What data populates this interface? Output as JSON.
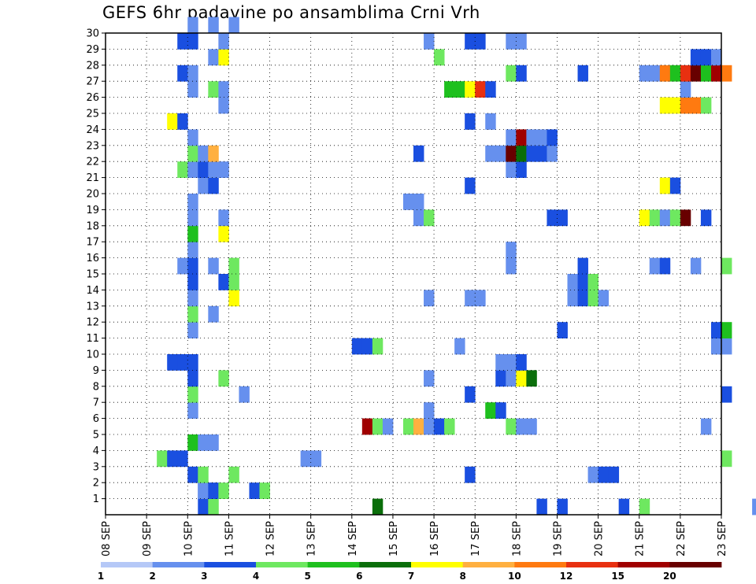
{
  "title": "GEFS 6hr padavine po ansamblima Crni Vrh",
  "chart_data": {
    "type": "heatmap",
    "title": "GEFS 6hr padavine po ansamblima Crni Vrh",
    "x_tick_labels": [
      "08 SEP",
      "09 SEP",
      "10 SEP",
      "11 SEP",
      "12 SEP",
      "13 SEP",
      "14 SEP",
      "15 SEP",
      "16 SEP",
      "17 SEP",
      "18 SEP",
      "19 SEP",
      "20 SEP",
      "21 SEP",
      "22 SEP",
      "23 SEP"
    ],
    "x_range_days": [
      0,
      15
    ],
    "y_tick_labels": [
      "1",
      "2",
      "3",
      "4",
      "5",
      "6",
      "7",
      "8",
      "9",
      "10",
      "11",
      "12",
      "13",
      "14",
      "15",
      "16",
      "17",
      "18",
      "19",
      "20",
      "21",
      "22",
      "23",
      "24",
      "25",
      "26",
      "27",
      "28",
      "29",
      "30"
    ],
    "y_range": [
      0,
      30
    ],
    "grid": true,
    "colorbar_levels": [
      "1",
      "2",
      "3",
      "4",
      "5",
      "6",
      "7",
      "8",
      "10",
      "12",
      "15",
      "20"
    ],
    "colors": [
      "#b5c8f7",
      "#6690ee",
      "#1a4fe0",
      "#6ee860",
      "#1ec01e",
      "#0a6e0a",
      "#ffff00",
      "#ffb040",
      "#ff7a10",
      "#e83010",
      "#a00000",
      "#680000"
    ],
    "cells": [
      [
        9,
        0,
        2
      ],
      [
        9,
        1,
        2
      ],
      [
        10,
        1,
        1
      ],
      [
        10,
        0,
        3
      ],
      [
        26,
        0,
        5
      ],
      [
        42,
        0,
        2
      ],
      [
        44,
        0,
        2
      ],
      [
        50,
        0,
        2
      ],
      [
        52,
        0,
        3
      ],
      [
        63,
        0,
        1
      ],
      [
        70,
        0,
        3
      ],
      [
        72,
        0,
        6
      ],
      [
        74,
        0,
        3
      ],
      [
        75,
        0,
        10
      ],
      [
        76,
        0,
        11
      ],
      [
        77,
        0,
        3
      ],
      [
        9,
        1,
        1
      ],
      [
        10,
        1,
        2
      ],
      [
        11,
        1,
        3
      ],
      [
        14,
        1,
        2
      ],
      [
        15,
        1,
        3
      ],
      [
        8,
        2,
        2
      ],
      [
        9,
        2,
        3
      ],
      [
        12,
        2,
        3
      ],
      [
        35,
        2,
        2
      ],
      [
        47,
        2,
        1
      ],
      [
        48,
        2,
        2
      ],
      [
        49,
        2,
        2
      ],
      [
        5,
        3,
        3
      ],
      [
        6,
        3,
        2
      ],
      [
        7,
        3,
        2
      ],
      [
        19,
        3,
        1
      ],
      [
        20,
        3,
        1
      ],
      [
        60,
        3,
        3
      ],
      [
        8,
        4,
        4
      ],
      [
        9,
        4,
        1
      ],
      [
        10,
        4,
        1
      ],
      [
        25,
        5,
        10
      ],
      [
        26,
        5,
        3
      ],
      [
        27,
        5,
        1
      ],
      [
        29,
        5,
        3
      ],
      [
        30,
        5,
        7
      ],
      [
        31,
        5,
        1
      ],
      [
        32,
        5,
        2
      ],
      [
        33,
        5,
        3
      ],
      [
        39,
        5,
        3
      ],
      [
        40,
        5,
        1
      ],
      [
        41,
        5,
        1
      ],
      [
        58,
        5,
        1
      ],
      [
        8,
        6,
        1
      ],
      [
        31,
        6,
        1
      ],
      [
        37,
        6,
        4
      ],
      [
        38,
        6,
        2
      ],
      [
        8,
        7,
        3
      ],
      [
        13,
        7,
        1
      ],
      [
        35,
        7,
        2
      ],
      [
        60,
        7,
        2
      ],
      [
        8,
        8,
        2
      ],
      [
        11,
        8,
        3
      ],
      [
        31,
        8,
        1
      ],
      [
        38,
        8,
        2
      ],
      [
        39,
        8,
        1
      ],
      [
        40,
        8,
        6
      ],
      [
        41,
        8,
        5
      ],
      [
        6,
        9,
        2
      ],
      [
        7,
        9,
        2
      ],
      [
        8,
        9,
        2
      ],
      [
        38,
        9,
        1
      ],
      [
        39,
        9,
        1
      ],
      [
        40,
        9,
        2
      ],
      [
        24,
        10,
        2
      ],
      [
        25,
        10,
        2
      ],
      [
        26,
        10,
        3
      ],
      [
        34,
        10,
        1
      ],
      [
        59,
        10,
        1
      ],
      [
        60,
        10,
        1
      ],
      [
        8,
        11,
        1
      ],
      [
        44,
        11,
        2
      ],
      [
        59,
        11,
        2
      ],
      [
        60,
        11,
        4
      ],
      [
        8,
        12,
        3
      ],
      [
        10,
        12,
        1
      ],
      [
        8,
        13,
        1
      ],
      [
        12,
        13,
        6
      ],
      [
        31,
        13,
        1
      ],
      [
        35,
        13,
        1
      ],
      [
        36,
        13,
        1
      ],
      [
        45,
        13,
        1
      ],
      [
        46,
        13,
        2
      ],
      [
        47,
        13,
        3
      ],
      [
        48,
        13,
        1
      ],
      [
        8,
        14,
        2
      ],
      [
        11,
        14,
        2
      ],
      [
        12,
        14,
        3
      ],
      [
        45,
        14,
        1
      ],
      [
        46,
        14,
        2
      ],
      [
        47,
        14,
        3
      ],
      [
        7,
        15,
        1
      ],
      [
        8,
        15,
        2
      ],
      [
        10,
        15,
        1
      ],
      [
        12,
        15,
        3
      ],
      [
        39,
        15,
        1
      ],
      [
        46,
        15,
        2
      ],
      [
        53,
        15,
        1
      ],
      [
        54,
        15,
        2
      ],
      [
        57,
        15,
        1
      ],
      [
        60,
        15,
        3
      ],
      [
        8,
        16,
        1
      ],
      [
        39,
        16,
        1
      ],
      [
        8,
        17,
        4
      ],
      [
        11,
        17,
        6
      ],
      [
        8,
        18,
        1
      ],
      [
        11,
        18,
        1
      ],
      [
        30,
        18,
        1
      ],
      [
        31,
        18,
        3
      ],
      [
        43,
        18,
        2
      ],
      [
        44,
        18,
        2
      ],
      [
        52,
        18,
        6
      ],
      [
        53,
        18,
        3
      ],
      [
        54,
        18,
        1
      ],
      [
        55,
        18,
        3
      ],
      [
        56,
        18,
        11
      ],
      [
        58,
        18,
        2
      ],
      [
        8,
        19,
        1
      ],
      [
        29,
        19,
        1
      ],
      [
        30,
        19,
        1
      ],
      [
        9,
        20,
        1
      ],
      [
        10,
        20,
        2
      ],
      [
        35,
        20,
        2
      ],
      [
        54,
        20,
        6
      ],
      [
        55,
        20,
        2
      ],
      [
        7,
        21,
        3
      ],
      [
        8,
        21,
        1
      ],
      [
        9,
        21,
        2
      ],
      [
        10,
        21,
        1
      ],
      [
        11,
        21,
        1
      ],
      [
        39,
        21,
        1
      ],
      [
        40,
        21,
        2
      ],
      [
        8,
        22,
        3
      ],
      [
        9,
        22,
        1
      ],
      [
        10,
        22,
        7
      ],
      [
        30,
        22,
        2
      ],
      [
        37,
        22,
        1
      ],
      [
        38,
        22,
        1
      ],
      [
        39,
        22,
        11
      ],
      [
        40,
        22,
        5
      ],
      [
        41,
        22,
        2
      ],
      [
        42,
        22,
        2
      ],
      [
        43,
        22,
        1
      ],
      [
        8,
        23,
        1
      ],
      [
        39,
        23,
        1
      ],
      [
        40,
        23,
        10
      ],
      [
        41,
        23,
        1
      ],
      [
        42,
        23,
        1
      ],
      [
        43,
        23,
        2
      ],
      [
        6,
        24,
        6
      ],
      [
        7,
        24,
        2
      ],
      [
        35,
        24,
        2
      ],
      [
        37,
        24,
        1
      ],
      [
        11,
        25,
        1
      ],
      [
        54,
        25,
        6
      ],
      [
        55,
        25,
        6
      ],
      [
        56,
        25,
        8
      ],
      [
        57,
        25,
        8
      ],
      [
        58,
        25,
        3
      ],
      [
        8,
        26,
        1
      ],
      [
        10,
        26,
        3
      ],
      [
        11,
        26,
        1
      ],
      [
        33,
        26,
        4
      ],
      [
        34,
        26,
        4
      ],
      [
        35,
        26,
        6
      ],
      [
        36,
        26,
        9
      ],
      [
        37,
        26,
        2
      ],
      [
        56,
        26,
        1
      ],
      [
        7,
        27,
        2
      ],
      [
        8,
        27,
        1
      ],
      [
        39,
        27,
        3
      ],
      [
        40,
        27,
        2
      ],
      [
        46,
        27,
        2
      ],
      [
        52,
        27,
        1
      ],
      [
        53,
        27,
        1
      ],
      [
        54,
        27,
        8
      ],
      [
        55,
        27,
        4
      ],
      [
        56,
        27,
        9
      ],
      [
        57,
        27,
        11
      ],
      [
        58,
        27,
        4
      ],
      [
        59,
        27,
        10
      ],
      [
        60,
        27,
        8
      ],
      [
        10,
        28,
        1
      ],
      [
        11,
        28,
        6
      ],
      [
        32,
        28,
        3
      ],
      [
        57,
        28,
        2
      ],
      [
        58,
        28,
        2
      ],
      [
        59,
        28,
        1
      ],
      [
        7,
        29,
        2
      ],
      [
        8,
        29,
        2
      ],
      [
        11,
        29,
        1
      ],
      [
        31,
        29,
        1
      ],
      [
        35,
        29,
        2
      ],
      [
        36,
        29,
        2
      ],
      [
        39,
        29,
        1
      ],
      [
        40,
        29,
        1
      ],
      [
        8,
        30,
        1
      ],
      [
        10,
        30,
        1
      ],
      [
        12,
        30,
        1
      ]
    ]
  }
}
